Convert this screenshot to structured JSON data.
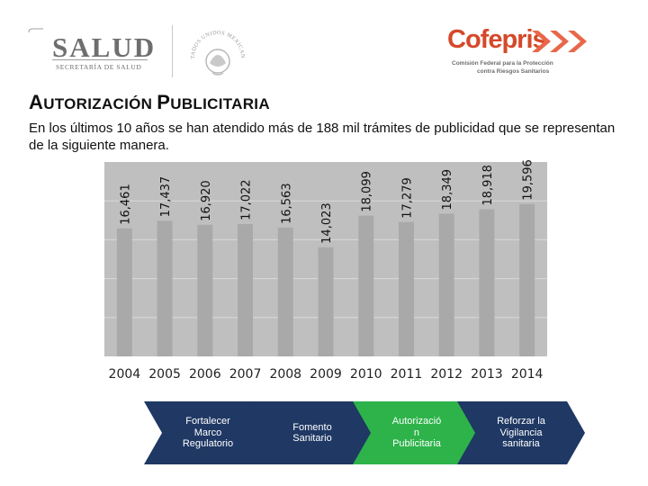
{
  "header": {
    "salud_logo": {
      "name": "SALUD",
      "subtitle": "SECRETARÍA DE SALUD"
    },
    "seal_text": "ESTADOS UNIDOS MEXICANOS",
    "cofepris_logo": {
      "name": "Cofepris",
      "subtitle_line1": "Comisión Federal para la Protección",
      "subtitle_line2": "contra Riesgos Sanitarios"
    }
  },
  "title": {
    "first_initial": "A",
    "first_rest": "UTORIZACIÓN",
    "second_initial": "P",
    "second_rest": "UBLICITARIA"
  },
  "intro_text": "En los últimos 10 años se han atendido más de 188 mil trámites de publicidad que se representan de la siguiente manera.",
  "chart_data": {
    "type": "bar",
    "categories": [
      "2004",
      "2005",
      "2006",
      "2007",
      "2008",
      "2009",
      "2010",
      "2011",
      "2012",
      "2013",
      "2014"
    ],
    "values": [
      16461,
      17437,
      16920,
      17022,
      16563,
      14023,
      18099,
      17279,
      18349,
      18918,
      19596
    ],
    "data_labels": [
      "16,461",
      "17,437",
      "16,920",
      "17,022",
      "16,563",
      "14,023",
      "18,099",
      "17,279",
      "18,349",
      "18,918",
      "19,596"
    ],
    "ylim": [
      0,
      25000
    ],
    "grid": true,
    "title": "",
    "xlabel": "",
    "ylabel": "",
    "colors": {
      "plot_background": "#bfbfbf",
      "bar": "#a9a9a9",
      "gridline": "#d9d9d9"
    }
  },
  "process_steps": [
    {
      "label": "Fortalecer\nMarco\nRegulatorio",
      "color": "#1f3864"
    },
    {
      "label": "Fomento\nSanitario",
      "color": "#1f3864"
    },
    {
      "label": "Autorizació\nn\nPublicitaria",
      "color": "#2db34a"
    },
    {
      "label": "Reforzar la\nVigilancia\nsanitaria",
      "color": "#1f3864"
    }
  ]
}
